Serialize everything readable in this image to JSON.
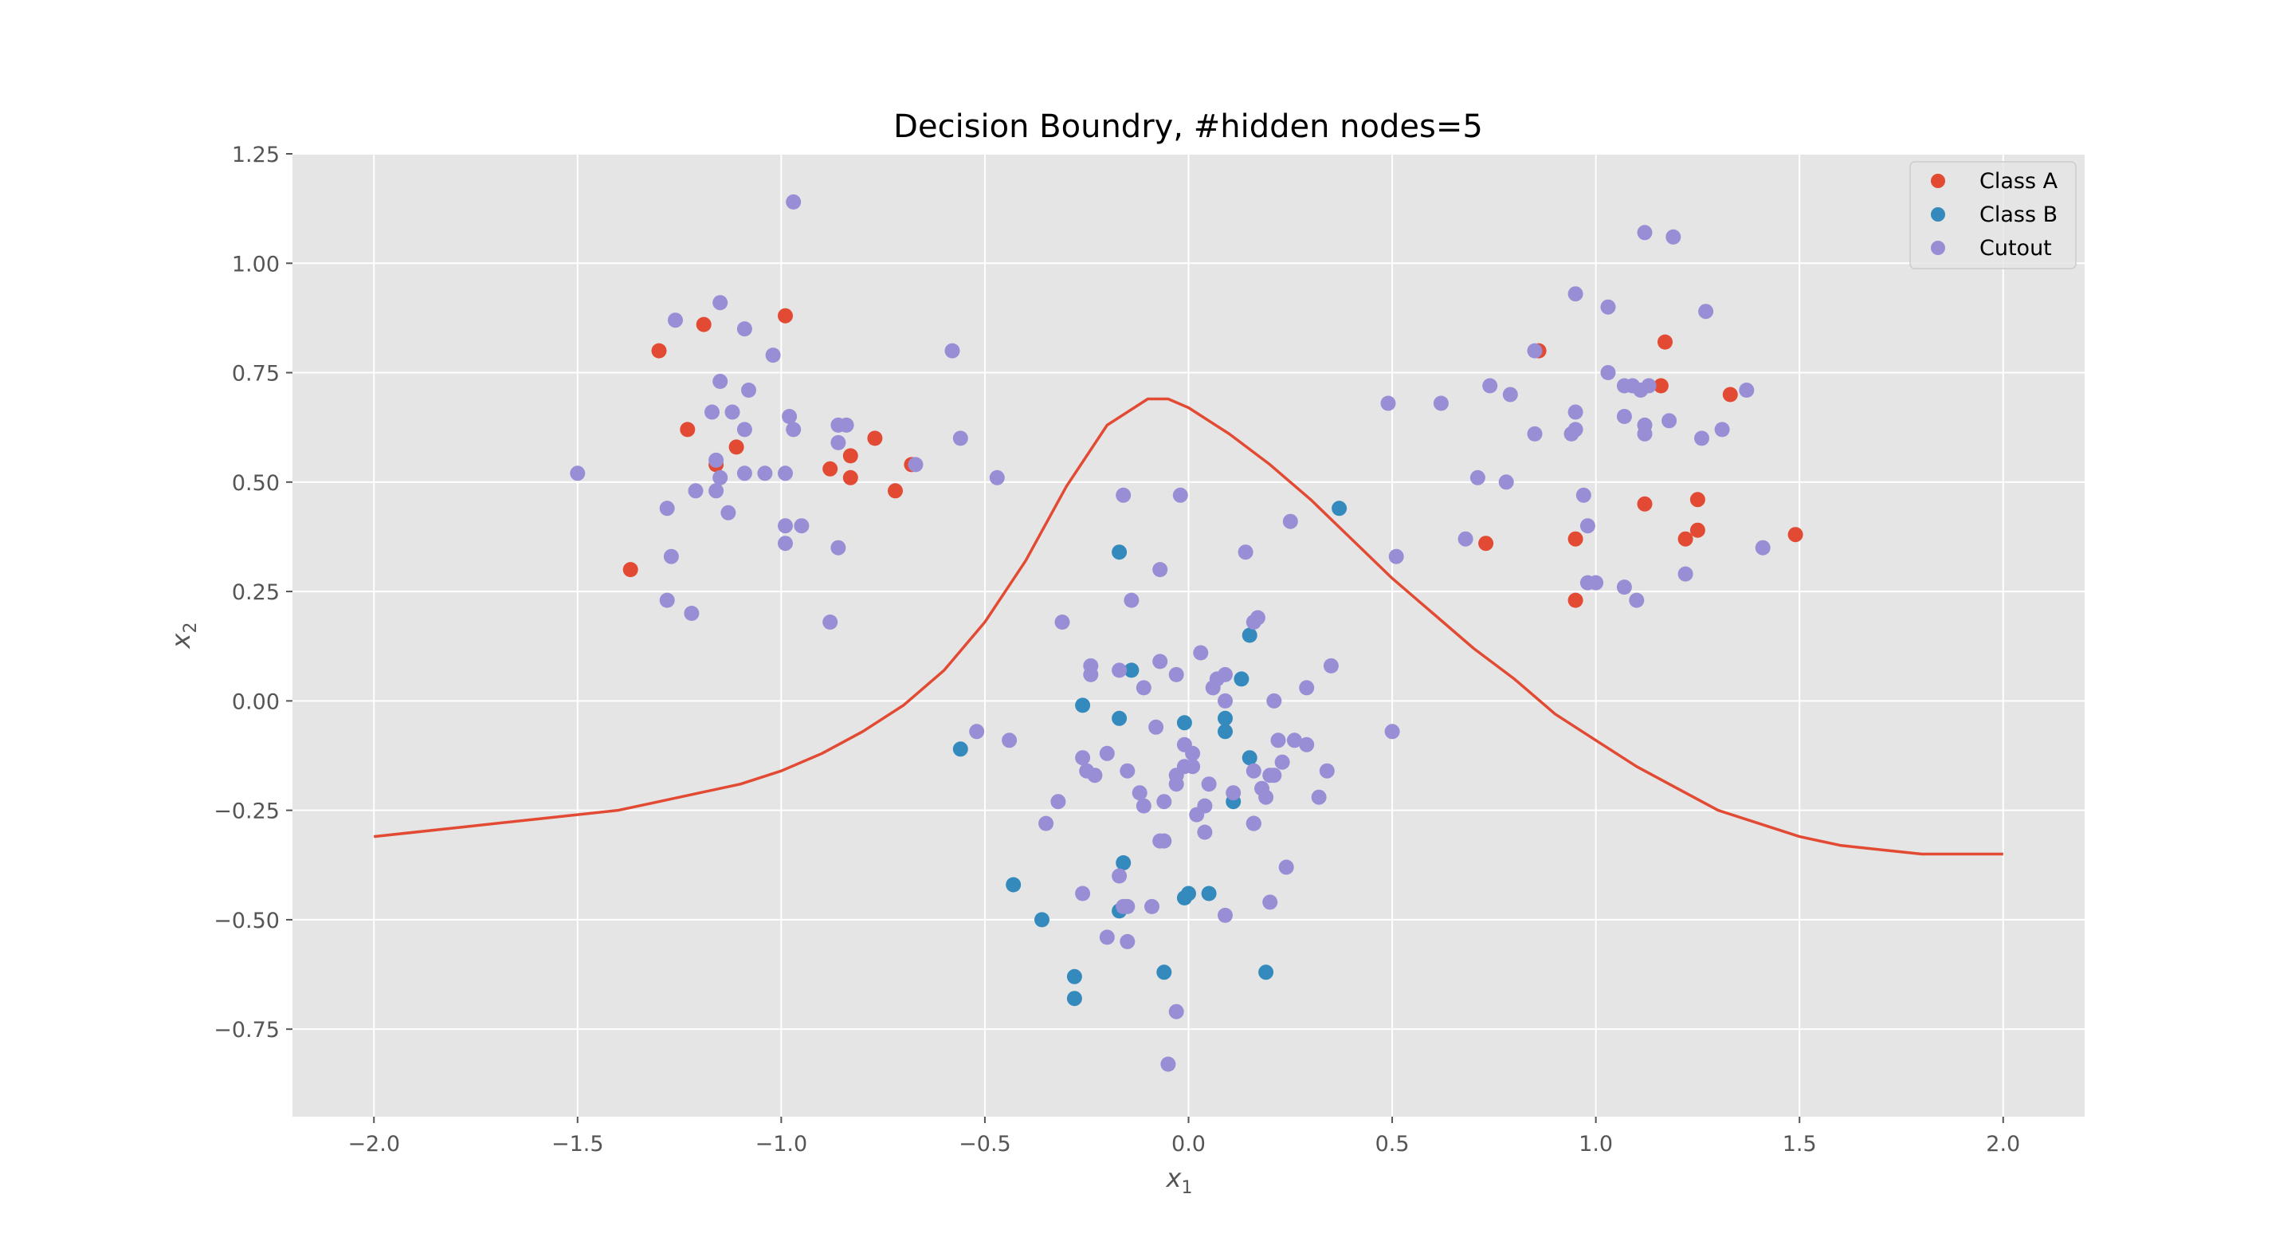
{
  "chart_data": {
    "type": "scatter",
    "title": "Decision Boundry, #hidden nodes=5",
    "xlabel": "x",
    "xlabel_sub": "1",
    "ylabel": "x",
    "ylabel_sub": "2",
    "xlim": [
      -2.2,
      2.2
    ],
    "ylim": [
      -0.95,
      1.25
    ],
    "xticks": [
      -2.0,
      -1.5,
      -1.0,
      -0.5,
      0.0,
      0.5,
      1.0,
      1.5,
      2.0
    ],
    "xtick_labels": [
      "−2.0",
      "−1.5",
      "−1.0",
      "−0.5",
      "0.0",
      "0.5",
      "1.0",
      "1.5",
      "2.0"
    ],
    "yticks": [
      1.25,
      1.0,
      0.75,
      0.5,
      0.25,
      0.0,
      -0.25,
      -0.5,
      -0.75
    ],
    "ytick_labels": [
      "1.25",
      "1.00",
      "0.75",
      "0.50",
      "0.25",
      "0.00",
      "−0.25",
      "−0.50",
      "−0.75"
    ],
    "grid": true,
    "legend_position": "top-right",
    "colors": {
      "class_a": "#e24a33",
      "class_b": "#348abd",
      "cutout": "#988ed5",
      "boundary": "#e24a33",
      "axes_bg": "#e5e5e5",
      "grid": "#ffffff"
    },
    "series": [
      {
        "name": "Class A",
        "color": "#e24a33",
        "points": [
          [
            -1.3,
            0.8
          ],
          [
            -1.19,
            0.86
          ],
          [
            -0.99,
            0.88
          ],
          [
            -1.23,
            0.62
          ],
          [
            -1.16,
            0.54
          ],
          [
            -1.11,
            0.58
          ],
          [
            -0.77,
            0.6
          ],
          [
            -0.83,
            0.56
          ],
          [
            -0.88,
            0.53
          ],
          [
            -0.83,
            0.51
          ],
          [
            -0.68,
            0.54
          ],
          [
            -0.72,
            0.48
          ],
          [
            -1.37,
            0.3
          ],
          [
            0.86,
            0.8
          ],
          [
            1.17,
            0.82
          ],
          [
            1.16,
            0.72
          ],
          [
            1.33,
            0.7
          ],
          [
            1.12,
            0.45
          ],
          [
            1.25,
            0.46
          ],
          [
            1.25,
            0.39
          ],
          [
            1.49,
            0.38
          ],
          [
            1.22,
            0.37
          ],
          [
            0.95,
            0.37
          ],
          [
            0.73,
            0.36
          ],
          [
            0.95,
            0.23
          ]
        ]
      },
      {
        "name": "Class B",
        "color": "#348abd",
        "points": [
          [
            0.37,
            0.44
          ],
          [
            -0.17,
            0.34
          ],
          [
            0.15,
            0.15
          ],
          [
            -0.14,
            0.07
          ],
          [
            0.13,
            0.05
          ],
          [
            -0.26,
            -0.01
          ],
          [
            -0.17,
            -0.04
          ],
          [
            -0.01,
            -0.05
          ],
          [
            0.09,
            -0.04
          ],
          [
            0.09,
            -0.07
          ],
          [
            -0.56,
            -0.11
          ],
          [
            0.15,
            -0.13
          ],
          [
            0.11,
            -0.23
          ],
          [
            0.16,
            -0.28
          ],
          [
            -0.16,
            -0.37
          ],
          [
            -0.43,
            -0.42
          ],
          [
            0.0,
            -0.44
          ],
          [
            0.05,
            -0.44
          ],
          [
            -0.01,
            -0.45
          ],
          [
            -0.17,
            -0.48
          ],
          [
            -0.36,
            -0.5
          ],
          [
            -0.06,
            -0.62
          ],
          [
            0.19,
            -0.62
          ],
          [
            -0.28,
            -0.63
          ],
          [
            -0.28,
            -0.68
          ]
        ]
      },
      {
        "name": "Cutout",
        "color": "#988ed5",
        "points": [
          [
            -0.97,
            1.14
          ],
          [
            -1.15,
            0.91
          ],
          [
            -1.26,
            0.87
          ],
          [
            -1.09,
            0.85
          ],
          [
            -1.02,
            0.79
          ],
          [
            -0.58,
            0.8
          ],
          [
            -1.15,
            0.73
          ],
          [
            -1.08,
            0.71
          ],
          [
            -1.17,
            0.66
          ],
          [
            -1.12,
            0.66
          ],
          [
            -0.98,
            0.65
          ],
          [
            -1.09,
            0.62
          ],
          [
            -0.86,
            0.63
          ],
          [
            -0.84,
            0.63
          ],
          [
            -0.97,
            0.62
          ],
          [
            -0.86,
            0.59
          ],
          [
            -0.56,
            0.6
          ],
          [
            -1.16,
            0.55
          ],
          [
            -0.67,
            0.54
          ],
          [
            -1.15,
            0.51
          ],
          [
            -1.09,
            0.52
          ],
          [
            -1.04,
            0.52
          ],
          [
            -0.99,
            0.52
          ],
          [
            -1.5,
            0.52
          ],
          [
            -0.47,
            0.51
          ],
          [
            -1.21,
            0.48
          ],
          [
            -1.16,
            0.48
          ],
          [
            -1.28,
            0.44
          ],
          [
            -1.13,
            0.43
          ],
          [
            -0.99,
            0.4
          ],
          [
            -0.95,
            0.4
          ],
          [
            -0.99,
            0.36
          ],
          [
            -0.86,
            0.35
          ],
          [
            -1.27,
            0.33
          ],
          [
            -1.28,
            0.23
          ],
          [
            -1.22,
            0.2
          ],
          [
            -0.88,
            0.18
          ],
          [
            1.12,
            1.07
          ],
          [
            1.19,
            1.06
          ],
          [
            0.95,
            0.93
          ],
          [
            1.03,
            0.9
          ],
          [
            1.27,
            0.89
          ],
          [
            0.85,
            0.8
          ],
          [
            1.03,
            0.75
          ],
          [
            0.74,
            0.72
          ],
          [
            1.07,
            0.72
          ],
          [
            1.09,
            0.72
          ],
          [
            1.11,
            0.71
          ],
          [
            1.13,
            0.72
          ],
          [
            1.37,
            0.71
          ],
          [
            0.79,
            0.7
          ],
          [
            0.62,
            0.68
          ],
          [
            0.49,
            0.68
          ],
          [
            0.95,
            0.66
          ],
          [
            1.07,
            0.65
          ],
          [
            1.12,
            0.63
          ],
          [
            1.18,
            0.64
          ],
          [
            1.31,
            0.62
          ],
          [
            0.95,
            0.62
          ],
          [
            0.85,
            0.61
          ],
          [
            0.94,
            0.61
          ],
          [
            1.12,
            0.61
          ],
          [
            1.26,
            0.6
          ],
          [
            0.71,
            0.51
          ],
          [
            0.78,
            0.5
          ],
          [
            0.97,
            0.47
          ],
          [
            0.98,
            0.4
          ],
          [
            1.41,
            0.35
          ],
          [
            0.68,
            0.37
          ],
          [
            0.51,
            0.33
          ],
          [
            1.22,
            0.29
          ],
          [
            0.98,
            0.27
          ],
          [
            1.0,
            0.27
          ],
          [
            1.07,
            0.26
          ],
          [
            1.1,
            0.23
          ],
          [
            -0.16,
            0.47
          ],
          [
            -0.02,
            0.47
          ],
          [
            0.25,
            0.41
          ],
          [
            0.14,
            0.34
          ],
          [
            -0.07,
            0.3
          ],
          [
            -0.14,
            0.23
          ],
          [
            0.17,
            0.19
          ],
          [
            0.16,
            0.18
          ],
          [
            -0.31,
            0.18
          ],
          [
            0.03,
            0.11
          ],
          [
            -0.07,
            0.09
          ],
          [
            -0.24,
            0.08
          ],
          [
            0.35,
            0.08
          ],
          [
            -0.24,
            0.06
          ],
          [
            -0.17,
            0.07
          ],
          [
            -0.03,
            0.06
          ],
          [
            0.09,
            0.06
          ],
          [
            0.07,
            0.05
          ],
          [
            0.06,
            0.03
          ],
          [
            -0.11,
            0.03
          ],
          [
            0.29,
            0.03
          ],
          [
            0.09,
            0.0
          ],
          [
            0.21,
            0.0
          ],
          [
            -0.52,
            -0.07
          ],
          [
            -0.44,
            -0.09
          ],
          [
            0.22,
            -0.09
          ],
          [
            0.26,
            -0.09
          ],
          [
            0.29,
            -0.1
          ],
          [
            0.5,
            -0.07
          ],
          [
            -0.08,
            -0.06
          ],
          [
            -0.01,
            -0.1
          ],
          [
            0.01,
            -0.12
          ],
          [
            -0.2,
            -0.12
          ],
          [
            -0.26,
            -0.13
          ],
          [
            0.34,
            -0.16
          ],
          [
            -0.25,
            -0.16
          ],
          [
            -0.23,
            -0.17
          ],
          [
            -0.15,
            -0.16
          ],
          [
            -0.03,
            -0.17
          ],
          [
            -0.01,
            -0.15
          ],
          [
            0.01,
            -0.15
          ],
          [
            0.16,
            -0.16
          ],
          [
            0.21,
            -0.17
          ],
          [
            0.2,
            -0.17
          ],
          [
            0.23,
            -0.14
          ],
          [
            -0.03,
            -0.19
          ],
          [
            0.05,
            -0.19
          ],
          [
            0.18,
            -0.2
          ],
          [
            -0.12,
            -0.21
          ],
          [
            0.19,
            -0.22
          ],
          [
            0.11,
            -0.21
          ],
          [
            -0.32,
            -0.23
          ],
          [
            0.32,
            -0.22
          ],
          [
            -0.11,
            -0.24
          ],
          [
            -0.06,
            -0.23
          ],
          [
            0.04,
            -0.24
          ],
          [
            0.02,
            -0.26
          ],
          [
            -0.35,
            -0.28
          ],
          [
            0.16,
            -0.28
          ],
          [
            0.04,
            -0.3
          ],
          [
            -0.07,
            -0.32
          ],
          [
            -0.06,
            -0.32
          ],
          [
            0.24,
            -0.38
          ],
          [
            -0.17,
            -0.4
          ],
          [
            -0.26,
            -0.44
          ],
          [
            -0.09,
            -0.47
          ],
          [
            -0.16,
            -0.47
          ],
          [
            -0.15,
            -0.47
          ],
          [
            0.2,
            -0.46
          ],
          [
            0.09,
            -0.49
          ],
          [
            -0.2,
            -0.54
          ],
          [
            -0.15,
            -0.55
          ],
          [
            -0.03,
            -0.71
          ],
          [
            -0.05,
            -0.83
          ]
        ]
      },
      {
        "name": "",
        "type": "line",
        "color": "#e24a33",
        "points": [
          [
            -2.0,
            -0.31
          ],
          [
            -1.8,
            -0.29
          ],
          [
            -1.6,
            -0.27
          ],
          [
            -1.4,
            -0.25
          ],
          [
            -1.3,
            -0.23
          ],
          [
            -1.2,
            -0.21
          ],
          [
            -1.1,
            -0.19
          ],
          [
            -1.0,
            -0.16
          ],
          [
            -0.9,
            -0.12
          ],
          [
            -0.8,
            -0.07
          ],
          [
            -0.7,
            -0.01
          ],
          [
            -0.6,
            0.07
          ],
          [
            -0.5,
            0.18
          ],
          [
            -0.4,
            0.32
          ],
          [
            -0.3,
            0.49
          ],
          [
            -0.2,
            0.63
          ],
          [
            -0.1,
            0.69
          ],
          [
            -0.05,
            0.69
          ],
          [
            0.0,
            0.67
          ],
          [
            0.1,
            0.61
          ],
          [
            0.2,
            0.54
          ],
          [
            0.3,
            0.46
          ],
          [
            0.4,
            0.37
          ],
          [
            0.5,
            0.28
          ],
          [
            0.6,
            0.2
          ],
          [
            0.7,
            0.12
          ],
          [
            0.8,
            0.05
          ],
          [
            0.9,
            -0.03
          ],
          [
            1.0,
            -0.09
          ],
          [
            1.1,
            -0.15
          ],
          [
            1.2,
            -0.2
          ],
          [
            1.3,
            -0.25
          ],
          [
            1.4,
            -0.28
          ],
          [
            1.5,
            -0.31
          ],
          [
            1.6,
            -0.33
          ],
          [
            1.7,
            -0.34
          ],
          [
            1.8,
            -0.35
          ],
          [
            1.9,
            -0.35
          ],
          [
            2.0,
            -0.35
          ]
        ]
      }
    ]
  }
}
